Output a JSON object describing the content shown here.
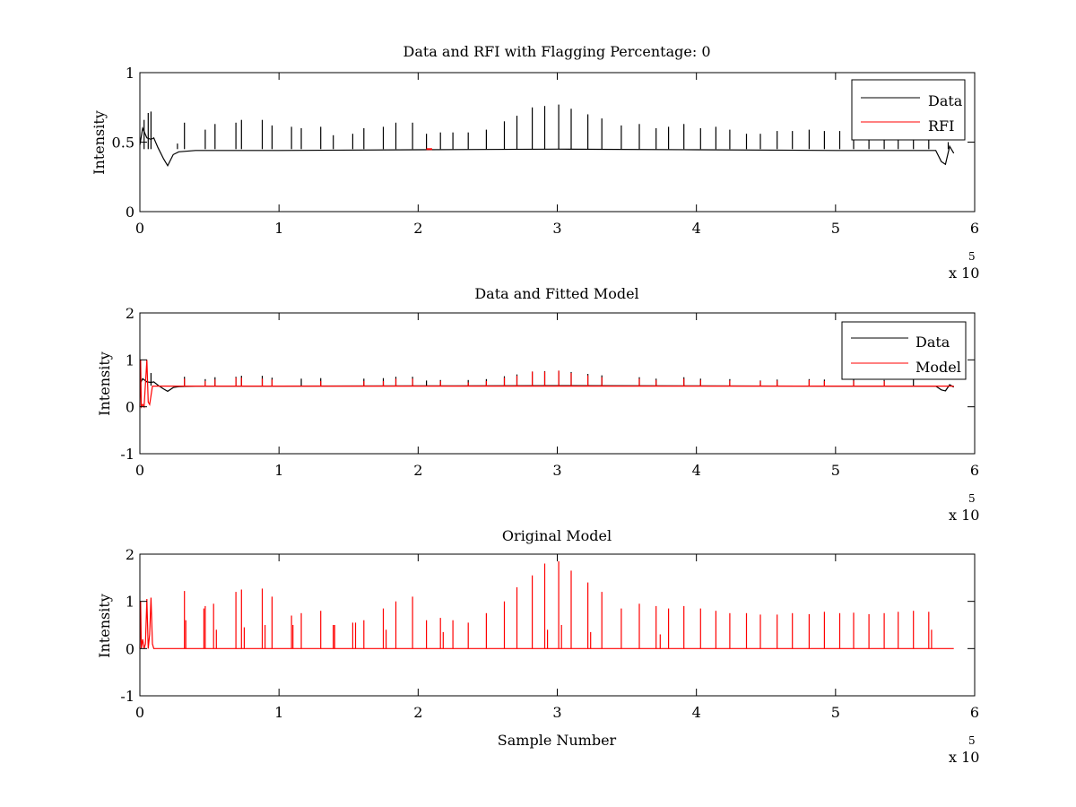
{
  "chart_data": [
    {
      "type": "line",
      "title": "Data and RFI with Flagging Percentage: 0",
      "xlabel": "",
      "ylabel": "Intensity",
      "xlim": [
        0,
        6
      ],
      "ylim": [
        0,
        1
      ],
      "x_scale_label": "x 10",
      "x_scale_exponent": "5",
      "xticks": [
        0,
        1,
        2,
        3,
        4,
        5,
        6
      ],
      "yticks": [
        0,
        0.5,
        1
      ],
      "xtick_labels": [
        "0",
        "1",
        "2",
        "3",
        "4",
        "5",
        "6"
      ],
      "ytick_labels": [
        "0",
        "0.5",
        "1"
      ],
      "legend_position": "top-right",
      "grid": false,
      "series": [
        {
          "name": "Data",
          "color": "#000000",
          "kind": "data",
          "baseline": 0.45,
          "x": [
            0.0,
            0.02,
            0.05,
            0.08,
            0.1,
            0.13,
            0.17,
            0.2,
            0.24,
            0.28,
            0.4,
            1.0,
            2.0,
            3.0,
            4.0,
            5.0,
            5.5,
            5.72,
            5.76,
            5.79,
            5.82,
            5.85
          ],
          "y": [
            0.48,
            0.6,
            0.53,
            0.52,
            0.53,
            0.46,
            0.38,
            0.33,
            0.41,
            0.43,
            0.44,
            0.44,
            0.445,
            0.45,
            0.445,
            0.44,
            0.44,
            0.44,
            0.36,
            0.34,
            0.47,
            0.42
          ],
          "spikes": [
            [
              0.03,
              0.66
            ],
            [
              0.06,
              0.71
            ],
            [
              0.08,
              0.72
            ],
            [
              0.27,
              0.49
            ],
            [
              0.32,
              0.64
            ],
            [
              0.47,
              0.59
            ],
            [
              0.54,
              0.63
            ],
            [
              0.69,
              0.64
            ],
            [
              0.73,
              0.66
            ],
            [
              0.88,
              0.66
            ],
            [
              0.95,
              0.62
            ],
            [
              1.09,
              0.61
            ],
            [
              1.16,
              0.6
            ],
            [
              1.3,
              0.61
            ],
            [
              1.39,
              0.55
            ],
            [
              1.53,
              0.56
            ],
            [
              1.61,
              0.6
            ],
            [
              1.75,
              0.61
            ],
            [
              1.84,
              0.64
            ],
            [
              1.96,
              0.64
            ],
            [
              2.06,
              0.56
            ],
            [
              2.16,
              0.57
            ],
            [
              2.25,
              0.57
            ],
            [
              2.36,
              0.57
            ],
            [
              2.49,
              0.59
            ],
            [
              2.62,
              0.65
            ],
            [
              2.71,
              0.69
            ],
            [
              2.82,
              0.75
            ],
            [
              2.91,
              0.76
            ],
            [
              3.01,
              0.77
            ],
            [
              3.1,
              0.74
            ],
            [
              3.22,
              0.7
            ],
            [
              3.32,
              0.67
            ],
            [
              3.46,
              0.62
            ],
            [
              3.59,
              0.63
            ],
            [
              3.71,
              0.6
            ],
            [
              3.8,
              0.61
            ],
            [
              3.91,
              0.63
            ],
            [
              4.03,
              0.6
            ],
            [
              4.14,
              0.61
            ],
            [
              4.24,
              0.59
            ],
            [
              4.36,
              0.56
            ],
            [
              4.46,
              0.56
            ],
            [
              4.58,
              0.58
            ],
            [
              4.69,
              0.58
            ],
            [
              4.81,
              0.59
            ],
            [
              4.92,
              0.58
            ],
            [
              5.03,
              0.58
            ],
            [
              5.13,
              0.6
            ],
            [
              5.24,
              0.57
            ],
            [
              5.35,
              0.57
            ],
            [
              5.45,
              0.58
            ],
            [
              5.56,
              0.58
            ],
            [
              5.67,
              0.58
            ],
            [
              5.81,
              0.5
            ]
          ]
        },
        {
          "name": "RFI",
          "color": "#ff0000",
          "kind": "flag",
          "x": [
            2.06,
            2.1
          ],
          "y": [
            0.45,
            0.45
          ]
        }
      ]
    },
    {
      "type": "line",
      "title": "Data and Fitted Model",
      "xlabel": "",
      "ylabel": "Intensity",
      "xlim": [
        0,
        6
      ],
      "ylim": [
        -1,
        2
      ],
      "x_scale_label": "x 10",
      "x_scale_exponent": "5",
      "xticks": [
        0,
        1,
        2,
        3,
        4,
        5,
        6
      ],
      "yticks": [
        -1,
        0,
        1,
        2
      ],
      "xtick_labels": [
        "0",
        "1",
        "2",
        "3",
        "4",
        "5",
        "6"
      ],
      "ytick_labels": [
        "-1",
        "0",
        "1",
        "2"
      ],
      "legend_position": "top-right",
      "grid": false,
      "series": [
        {
          "name": "Data",
          "color": "#000000",
          "kind": "data",
          "baseline": 0.45,
          "x": [
            0.0,
            0.02,
            0.05,
            0.08,
            0.1,
            0.13,
            0.17,
            0.2,
            0.24,
            0.28,
            0.4,
            1.0,
            2.0,
            3.0,
            4.0,
            5.0,
            5.5,
            5.72,
            5.76,
            5.79,
            5.82,
            5.85
          ],
          "y": [
            0.48,
            0.6,
            0.53,
            0.52,
            0.53,
            0.46,
            0.38,
            0.33,
            0.41,
            0.43,
            0.44,
            0.44,
            0.445,
            0.45,
            0.445,
            0.44,
            0.44,
            0.44,
            0.36,
            0.34,
            0.47,
            0.42
          ],
          "spikes": [
            [
              0.08,
              0.72
            ],
            [
              0.32,
              0.64
            ],
            [
              0.47,
              0.59
            ],
            [
              0.54,
              0.63
            ],
            [
              0.69,
              0.64
            ],
            [
              0.73,
              0.66
            ],
            [
              0.88,
              0.66
            ],
            [
              0.95,
              0.62
            ],
            [
              1.16,
              0.6
            ],
            [
              1.3,
              0.61
            ],
            [
              1.61,
              0.6
            ],
            [
              1.75,
              0.61
            ],
            [
              1.84,
              0.64
            ],
            [
              1.96,
              0.64
            ],
            [
              2.06,
              0.56
            ],
            [
              2.16,
              0.57
            ],
            [
              2.36,
              0.57
            ],
            [
              2.49,
              0.59
            ],
            [
              2.62,
              0.65
            ],
            [
              2.71,
              0.69
            ],
            [
              2.82,
              0.75
            ],
            [
              2.91,
              0.76
            ],
            [
              3.01,
              0.77
            ],
            [
              3.1,
              0.74
            ],
            [
              3.22,
              0.7
            ],
            [
              3.32,
              0.67
            ],
            [
              3.59,
              0.63
            ],
            [
              3.71,
              0.6
            ],
            [
              3.91,
              0.63
            ],
            [
              4.03,
              0.6
            ],
            [
              4.24,
              0.59
            ],
            [
              4.46,
              0.56
            ],
            [
              4.58,
              0.58
            ],
            [
              4.81,
              0.59
            ],
            [
              4.92,
              0.58
            ],
            [
              5.13,
              0.6
            ],
            [
              5.35,
              0.57
            ],
            [
              5.56,
              0.58
            ]
          ]
        },
        {
          "name": "Model",
          "color": "#ff0000",
          "kind": "model",
          "baseline": 0.44,
          "x": [
            0.0,
            0.005,
            0.01,
            0.02,
            0.03,
            0.05,
            0.06,
            0.07,
            0.09,
            0.1,
            5.8,
            5.85
          ],
          "y": [
            0.0,
            1.0,
            0.0,
            0.05,
            0.0,
            1.0,
            0.1,
            0.05,
            0.44,
            0.44,
            0.44,
            0.44
          ],
          "spikes": [
            [
              0.32,
              0.6
            ],
            [
              0.47,
              0.55
            ],
            [
              0.54,
              0.58
            ],
            [
              0.69,
              0.62
            ],
            [
              0.73,
              0.62
            ],
            [
              0.88,
              0.6
            ],
            [
              0.95,
              0.58
            ],
            [
              1.3,
              0.55
            ],
            [
              1.61,
              0.55
            ],
            [
              1.75,
              0.55
            ],
            [
              1.84,
              0.6
            ],
            [
              1.96,
              0.6
            ],
            [
              2.16,
              0.55
            ],
            [
              2.36,
              0.52
            ],
            [
              2.49,
              0.55
            ],
            [
              2.62,
              0.62
            ],
            [
              2.71,
              0.66
            ],
            [
              2.82,
              0.75
            ],
            [
              2.91,
              0.75
            ],
            [
              3.01,
              0.77
            ],
            [
              3.1,
              0.72
            ],
            [
              3.22,
              0.67
            ],
            [
              3.32,
              0.63
            ],
            [
              3.59,
              0.6
            ],
            [
              3.71,
              0.57
            ],
            [
              3.91,
              0.6
            ],
            [
              4.03,
              0.57
            ],
            [
              4.24,
              0.56
            ],
            [
              4.46,
              0.55
            ],
            [
              4.58,
              0.56
            ],
            [
              4.81,
              0.57
            ],
            [
              4.92,
              0.55
            ],
            [
              5.13,
              0.56
            ],
            [
              5.35,
              0.55
            ]
          ]
        }
      ]
    },
    {
      "type": "line",
      "title": "Original Model",
      "xlabel": "Sample Number",
      "ylabel": "Intensity",
      "xlim": [
        0,
        6
      ],
      "ylim": [
        -1,
        2
      ],
      "x_scale_label": "x 10",
      "x_scale_exponent": "5",
      "xticks": [
        0,
        1,
        2,
        3,
        4,
        5,
        6
      ],
      "yticks": [
        -1,
        0,
        1,
        2
      ],
      "xtick_labels": [
        "0",
        "1",
        "2",
        "3",
        "4",
        "5",
        "6"
      ],
      "ytick_labels": [
        "-1",
        "0",
        "1",
        "2"
      ],
      "legend_position": "none",
      "grid": false,
      "series": [
        {
          "name": "",
          "color": "#ff0000",
          "kind": "model",
          "baseline": 0.0,
          "x": [
            0.0,
            0.005,
            0.01,
            0.02,
            0.03,
            0.04,
            0.05,
            0.06,
            0.07,
            0.08,
            0.09,
            0.1,
            5.85
          ],
          "y": [
            0.0,
            1.0,
            0.0,
            0.2,
            0.0,
            0.1,
            1.05,
            0.0,
            0.3,
            1.08,
            0.1,
            0.0,
            0.0
          ],
          "spikes": [
            [
              0.32,
              1.22
            ],
            [
              0.33,
              0.6
            ],
            [
              0.46,
              0.85
            ],
            [
              0.47,
              0.9
            ],
            [
              0.53,
              0.95
            ],
            [
              0.55,
              0.4
            ],
            [
              0.69,
              1.2
            ],
            [
              0.73,
              1.25
            ],
            [
              0.75,
              0.45
            ],
            [
              0.88,
              1.27
            ],
            [
              0.9,
              0.5
            ],
            [
              0.95,
              1.1
            ],
            [
              1.09,
              0.7
            ],
            [
              1.1,
              0.5
            ],
            [
              1.16,
              0.75
            ],
            [
              1.3,
              0.8
            ],
            [
              1.39,
              0.5
            ],
            [
              1.4,
              0.5
            ],
            [
              1.53,
              0.55
            ],
            [
              1.55,
              0.55
            ],
            [
              1.61,
              0.6
            ],
            [
              1.75,
              0.85
            ],
            [
              1.77,
              0.4
            ],
            [
              1.84,
              1.0
            ],
            [
              1.96,
              1.1
            ],
            [
              2.06,
              0.6
            ],
            [
              2.16,
              0.65
            ],
            [
              2.18,
              0.35
            ],
            [
              2.25,
              0.6
            ],
            [
              2.36,
              0.55
            ],
            [
              2.49,
              0.75
            ],
            [
              2.62,
              1.0
            ],
            [
              2.71,
              1.3
            ],
            [
              2.82,
              1.55
            ],
            [
              2.91,
              1.8
            ],
            [
              2.93,
              0.4
            ],
            [
              3.01,
              1.85
            ],
            [
              3.03,
              0.5
            ],
            [
              3.1,
              1.65
            ],
            [
              3.22,
              1.4
            ],
            [
              3.24,
              0.35
            ],
            [
              3.32,
              1.2
            ],
            [
              3.46,
              0.85
            ],
            [
              3.59,
              0.95
            ],
            [
              3.71,
              0.9
            ],
            [
              3.74,
              0.3
            ],
            [
              3.8,
              0.85
            ],
            [
              3.91,
              0.9
            ],
            [
              4.03,
              0.85
            ],
            [
              4.14,
              0.8
            ],
            [
              4.24,
              0.75
            ],
            [
              4.36,
              0.75
            ],
            [
              4.46,
              0.72
            ],
            [
              4.58,
              0.72
            ],
            [
              4.69,
              0.75
            ],
            [
              4.81,
              0.73
            ],
            [
              4.92,
              0.78
            ],
            [
              5.03,
              0.75
            ],
            [
              5.13,
              0.76
            ],
            [
              5.24,
              0.73
            ],
            [
              5.35,
              0.75
            ],
            [
              5.45,
              0.78
            ],
            [
              5.56,
              0.8
            ],
            [
              5.67,
              0.78
            ],
            [
              5.69,
              0.4
            ]
          ]
        }
      ]
    }
  ]
}
